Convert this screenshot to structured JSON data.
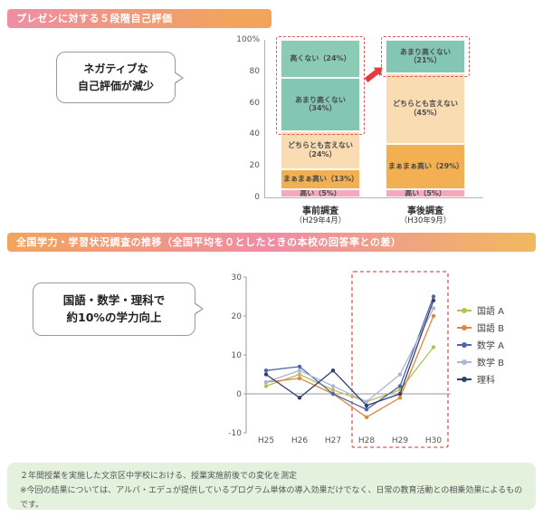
{
  "section1": {
    "title": "プレゼンに対する５段階自己評価",
    "callout_line1": "ネガティブな",
    "callout_line2": "自己評価が減少"
  },
  "section2": {
    "title": "全国学力・学習状況調査の推移（全国平均を０としたときの本校の回答率との差）",
    "callout_line1": "国語・数学・理科で",
    "callout_line2": "約10%の学力向上"
  },
  "footer": {
    "line1": "２年間授業を実施した文京区中学校における、授業実施前後での変化を測定",
    "line2": "※今回の結果については、アルバ・エデュが提供しているプログラム単体の導入効果だけでなく、日常の教育活動との相乗効果によるものです。"
  },
  "chart_data": [
    {
      "type": "bar",
      "stacked": true,
      "title": "プレゼンに対する５段階自己評価",
      "unit": "%",
      "y_axis": {
        "min": 0,
        "max": 100,
        "ticks": [
          {
            "value": 100,
            "label": "100%"
          },
          {
            "value": 80,
            "label": "80"
          },
          {
            "value": 60,
            "label": "60"
          },
          {
            "value": 40,
            "label": "40"
          },
          {
            "value": 20,
            "label": "20"
          },
          {
            "value": 0,
            "label": "0"
          }
        ]
      },
      "bars": [
        {
          "label": "事前調査",
          "sublabel": "（H29年4月）",
          "segments": [
            {
              "name": "高い",
              "value": 5,
              "color": "#f6a9bd"
            },
            {
              "name": "まぁまぁ高い",
              "value": 13,
              "color": "#f2b052"
            },
            {
              "name": "どちらとも言えない",
              "value": 24,
              "color": "#fadcb2"
            },
            {
              "name": "あまり高くない",
              "value": 34,
              "color": "#83c6b3"
            },
            {
              "name": "高くない",
              "value": 24,
              "color": "#8bcbb6"
            }
          ],
          "highlight_top_segments": 2
        },
        {
          "label": "事後調査",
          "sublabel": "（H30年9月）",
          "segments": [
            {
              "name": "高い",
              "value": 5,
              "color": "#f6a9bd"
            },
            {
              "name": "まぁまぁ高い",
              "value": 29,
              "color": "#f2b052"
            },
            {
              "name": "どちらとも言えない",
              "value": 45,
              "color": "#fadcb2"
            },
            {
              "name": "あまり高くない",
              "value": 21,
              "color": "#83c6b3"
            }
          ],
          "highlight_top_segments": 1
        }
      ],
      "highlight_color": "#e05555",
      "annotation": "ネガティブな自己評価が減少"
    },
    {
      "type": "line",
      "title": "全国学力・学習状況調査の推移（全国平均を０としたときの本校の回答率との差）",
      "x": [
        "H25",
        "H26",
        "H27",
        "H28",
        "H29",
        "H30"
      ],
      "ylim": [
        -10,
        30
      ],
      "y_ticks": [
        30,
        20,
        10,
        0,
        -10
      ],
      "series": [
        {
          "name": "国語 A",
          "color": "#b9bd55",
          "values": [
            2,
            5,
            1,
            -2,
            1,
            12
          ]
        },
        {
          "name": "国語 B",
          "color": "#dd8840",
          "values": [
            3,
            4,
            0,
            -6,
            -1,
            20
          ]
        },
        {
          "name": "数学 A",
          "color": "#5265a8",
          "values": [
            6,
            7,
            0,
            -4,
            2,
            25
          ]
        },
        {
          "name": "数学 B",
          "color": "#a9b6da",
          "values": [
            3,
            6,
            2,
            -2,
            5,
            22
          ]
        },
        {
          "name": "理科",
          "color": "#32406e",
          "values": [
            5,
            -1,
            6,
            -3,
            0,
            24
          ]
        }
      ],
      "highlight_x_range": [
        "H28",
        "H30"
      ],
      "highlight_color": "#e05555",
      "legend_position": "right",
      "grid": false
    }
  ]
}
